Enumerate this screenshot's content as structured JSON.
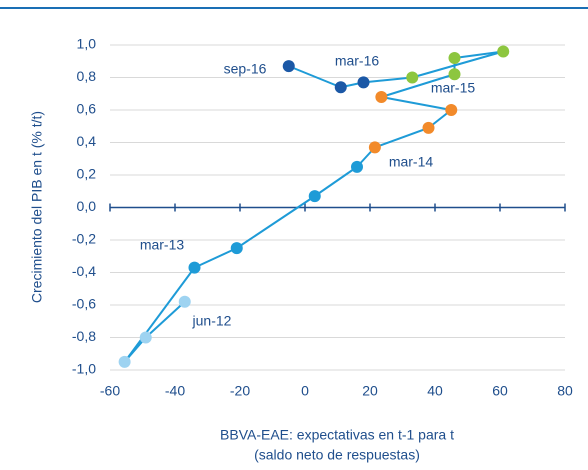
{
  "chart_data": {
    "type": "scatter",
    "connected": true,
    "line_color": "#1e9bd7",
    "x_label": "BBVA-EAE: expectativas en t-1 para t",
    "x_label_2": "(saldo neto de respuestas)",
    "y_label": "Crecimiento del PIB en t (% t/t)",
    "xlim": [
      -60,
      80
    ],
    "xticks": [
      -60,
      -40,
      -20,
      0,
      20,
      40,
      60,
      80
    ],
    "ylim": [
      -1,
      1
    ],
    "yticks": [
      {
        "value": -1,
        "label": "-1,0"
      },
      {
        "value": -0.8,
        "label": "-0,8"
      },
      {
        "value": -0.6,
        "label": "-0,6"
      },
      {
        "value": -0.4,
        "label": "-0,4"
      },
      {
        "value": -0.2,
        "label": "-0,2"
      },
      {
        "value": 0,
        "label": "0,0"
      },
      {
        "value": 0.2,
        "label": "0,2"
      },
      {
        "value": 0.4,
        "label": "0,4"
      },
      {
        "value": 0.6,
        "label": "0,6"
      },
      {
        "value": 0.8,
        "label": "0,8"
      },
      {
        "value": 1,
        "label": "1,0"
      }
    ],
    "grid": true,
    "series": [
      {
        "color": "#9ed3f1",
        "x": [
          -37,
          -49,
          -55.5
        ],
        "y": [
          -0.58,
          -0.8,
          -0.95
        ]
      },
      {
        "color": "#1e9bd7",
        "x": [
          -34,
          -21,
          3,
          16
        ],
        "y": [
          -0.37,
          -0.25,
          0.07,
          0.25
        ]
      },
      {
        "color": "#f28a2a",
        "x": [
          21.5,
          38,
          45,
          23.5
        ],
        "y": [
          0.37,
          0.49,
          0.6,
          0.68
        ]
      },
      {
        "color": "#8dc63f",
        "x": [
          46,
          46,
          61,
          33
        ],
        "y": [
          0.82,
          0.92,
          0.96,
          0.8
        ]
      },
      {
        "color": "#1b58a6",
        "x": [
          18,
          11,
          -5
        ],
        "y": [
          0.77,
          0.74,
          0.87
        ]
      }
    ],
    "annotations": [
      "sep-16",
      "mar-16",
      "mar-15",
      "mar-14",
      "mar-13",
      "jun-12"
    ]
  }
}
